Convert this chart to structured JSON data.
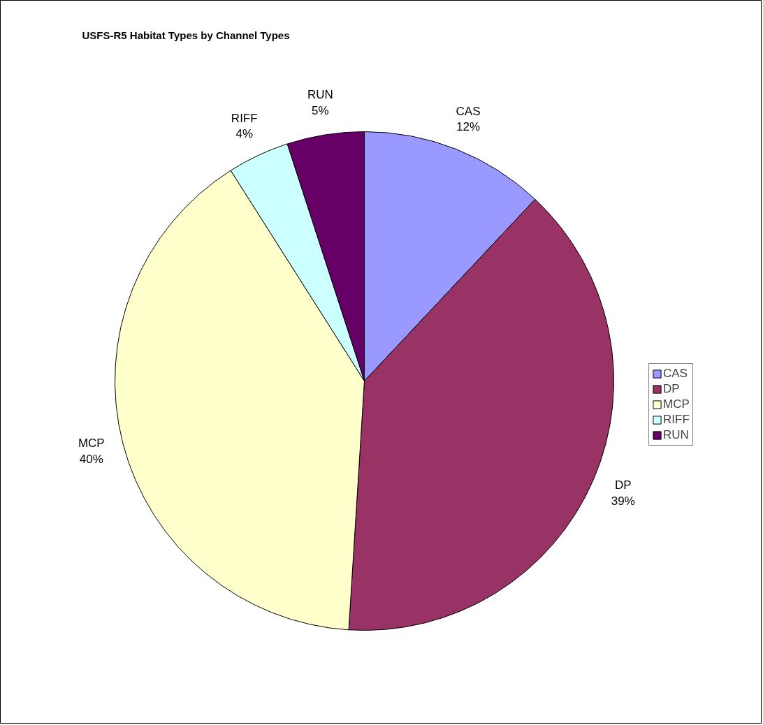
{
  "chart_data": {
    "type": "pie",
    "title": "USFS-R5 Habitat Types by Channel Types",
    "categories": [
      "CAS",
      "DP",
      "MCP",
      "RIFF",
      "RUN"
    ],
    "values": [
      12,
      39,
      40,
      4,
      5
    ],
    "value_labels": [
      "12%",
      "39%",
      "40%",
      "4%",
      "5%"
    ],
    "colors": [
      "#9999ff",
      "#993366",
      "#ffffcc",
      "#ccffff",
      "#660066"
    ],
    "legend": "right"
  }
}
